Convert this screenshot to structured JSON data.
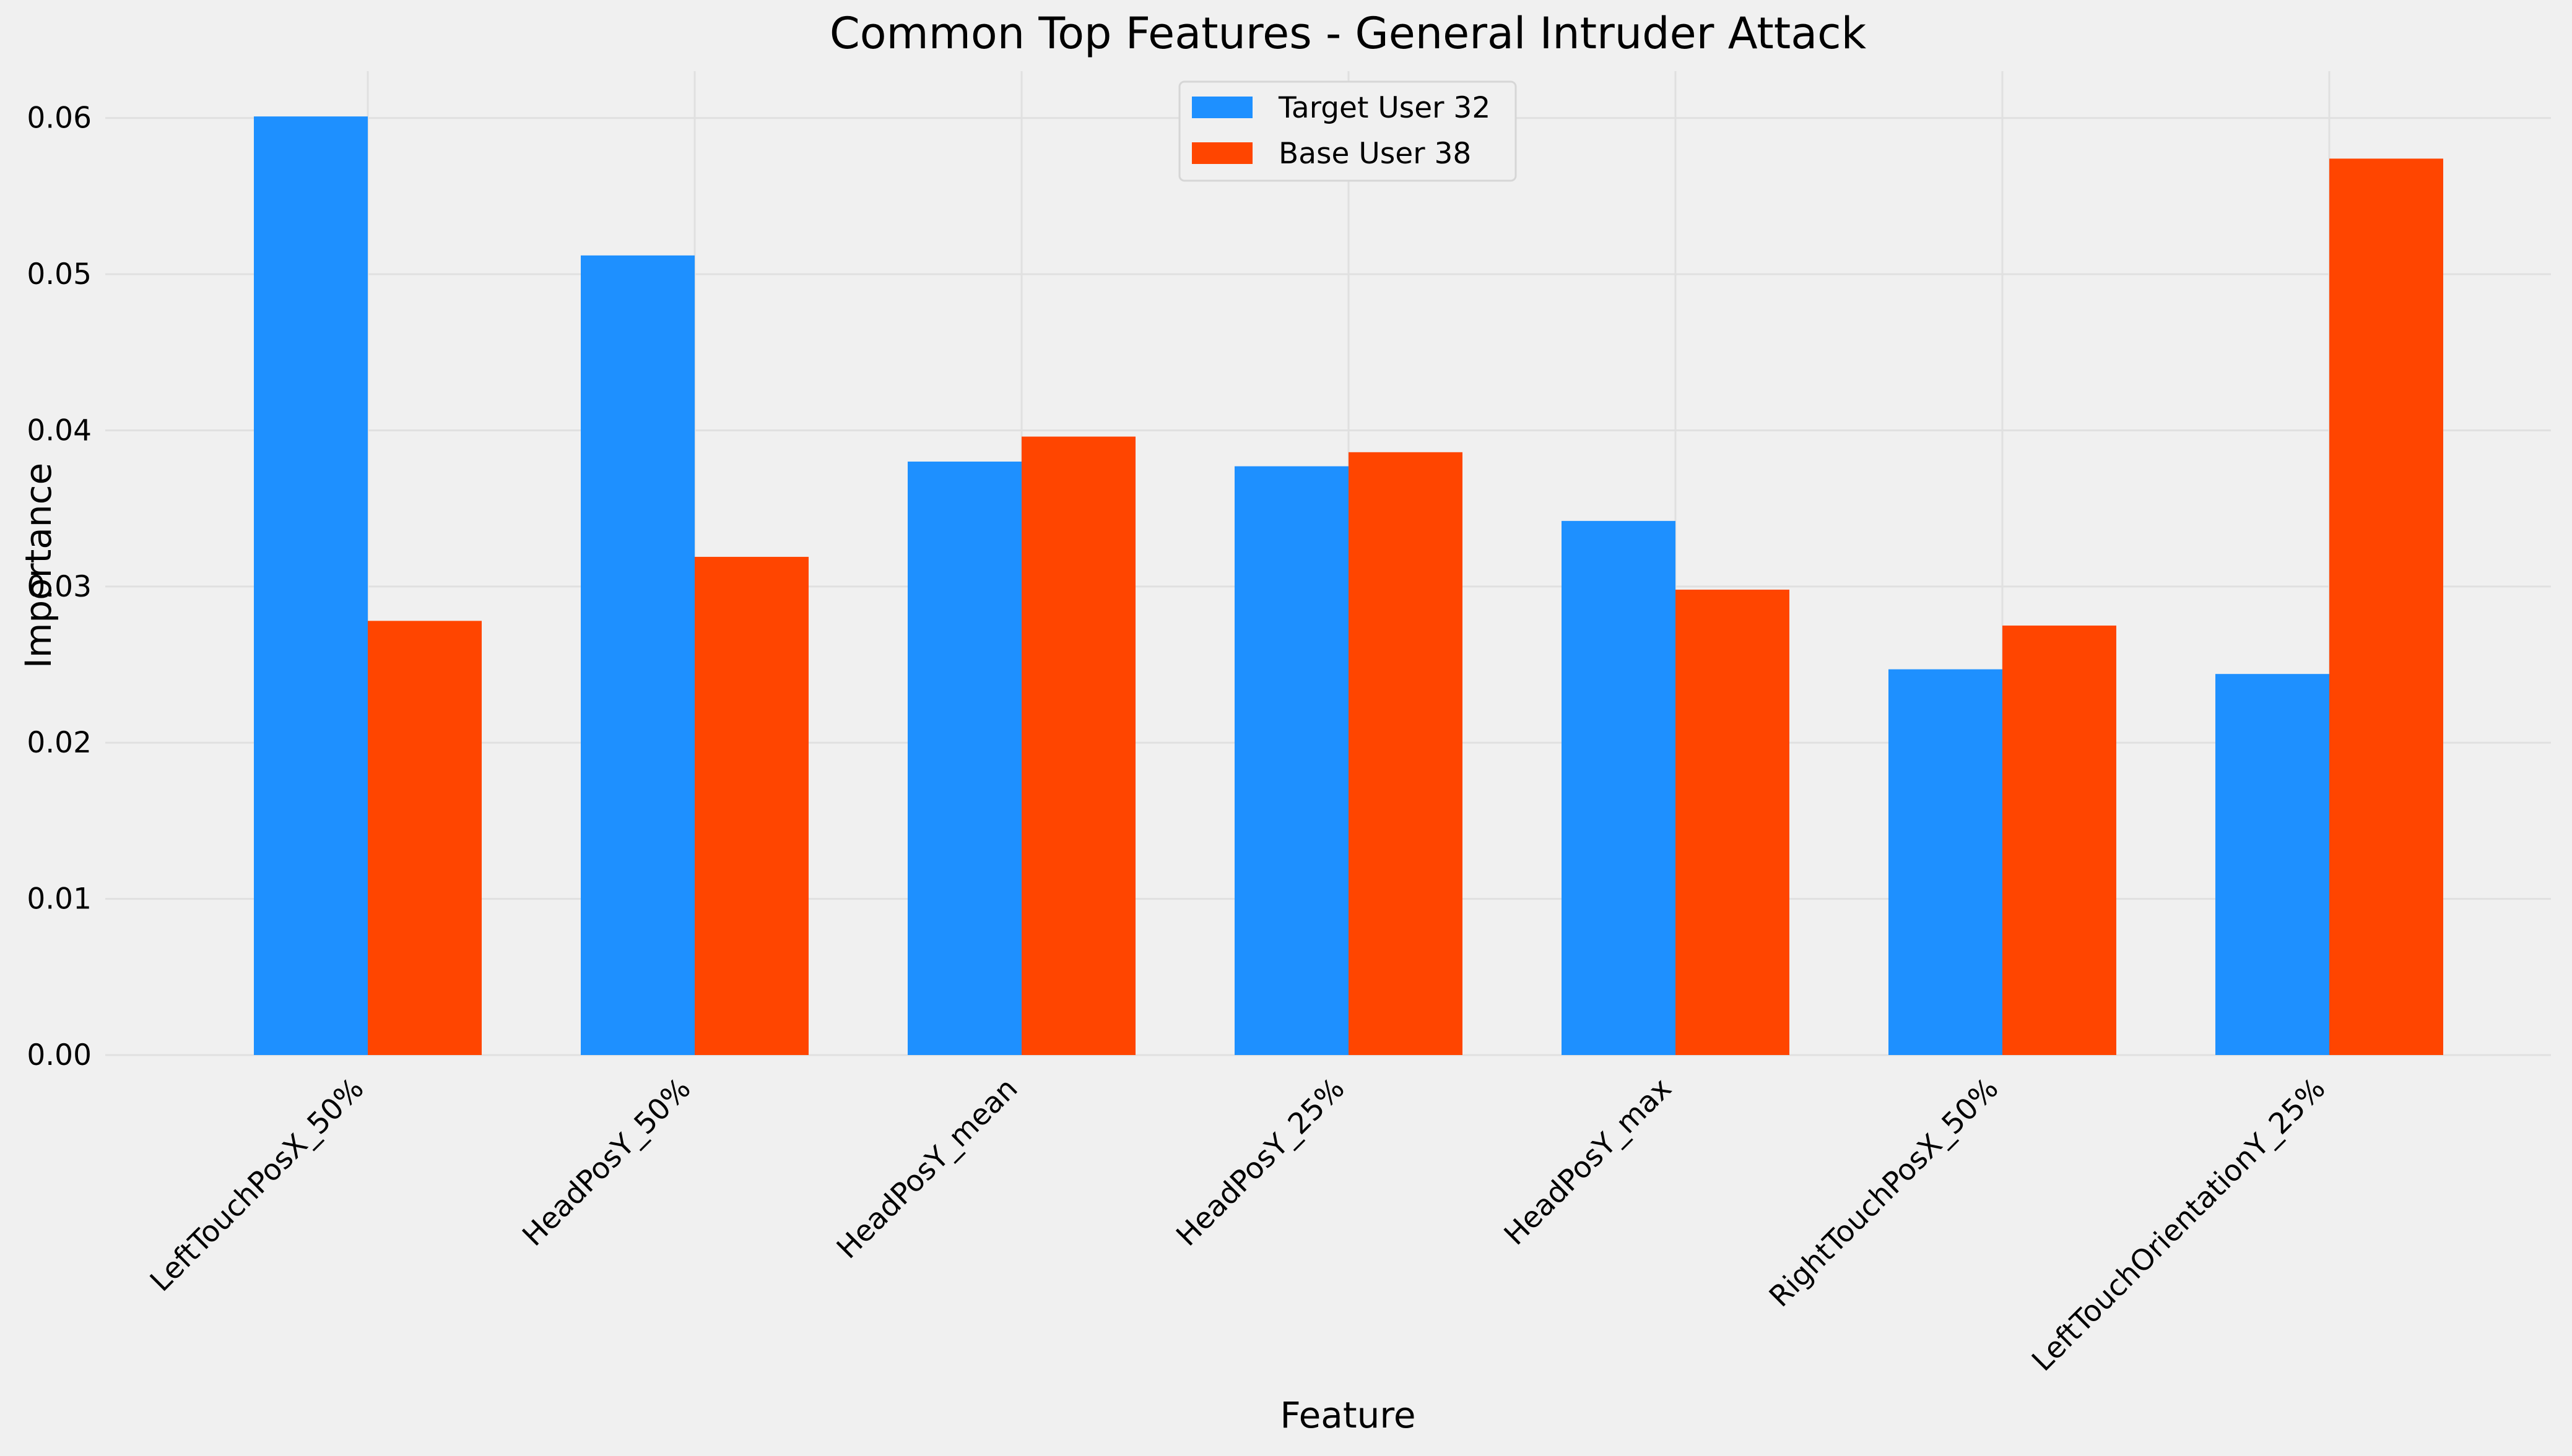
{
  "chart_data": {
    "type": "bar",
    "title": "Common Top Features - General Intruder Attack",
    "xlabel": "Feature",
    "ylabel": "Importance",
    "categories": [
      "LeftTouchPosX_50%",
      "HeadPosY_50%",
      "HeadPosY_mean",
      "HeadPosY_25%",
      "HeadPosY_max",
      "RightTouchPosX_50%",
      "LeftTouchOrientationY_25%"
    ],
    "series": [
      {
        "name": "Target User 32",
        "color": "#1e90ff",
        "values": [
          0.0601,
          0.0512,
          0.038,
          0.0377,
          0.0342,
          0.0247,
          0.0244
        ]
      },
      {
        "name": "Base User 38",
        "color": "#ff4500",
        "values": [
          0.0278,
          0.0319,
          0.0396,
          0.0386,
          0.0298,
          0.0275,
          0.0574
        ]
      }
    ],
    "ylim": [
      0,
      0.063
    ],
    "yticks": [
      "0.00",
      "0.01",
      "0.02",
      "0.03",
      "0.04",
      "0.05",
      "0.06"
    ],
    "ytick_values": [
      0,
      0.01,
      0.02,
      0.03,
      0.04,
      0.05,
      0.06
    ],
    "grid": true,
    "legend_position": "top-center"
  }
}
